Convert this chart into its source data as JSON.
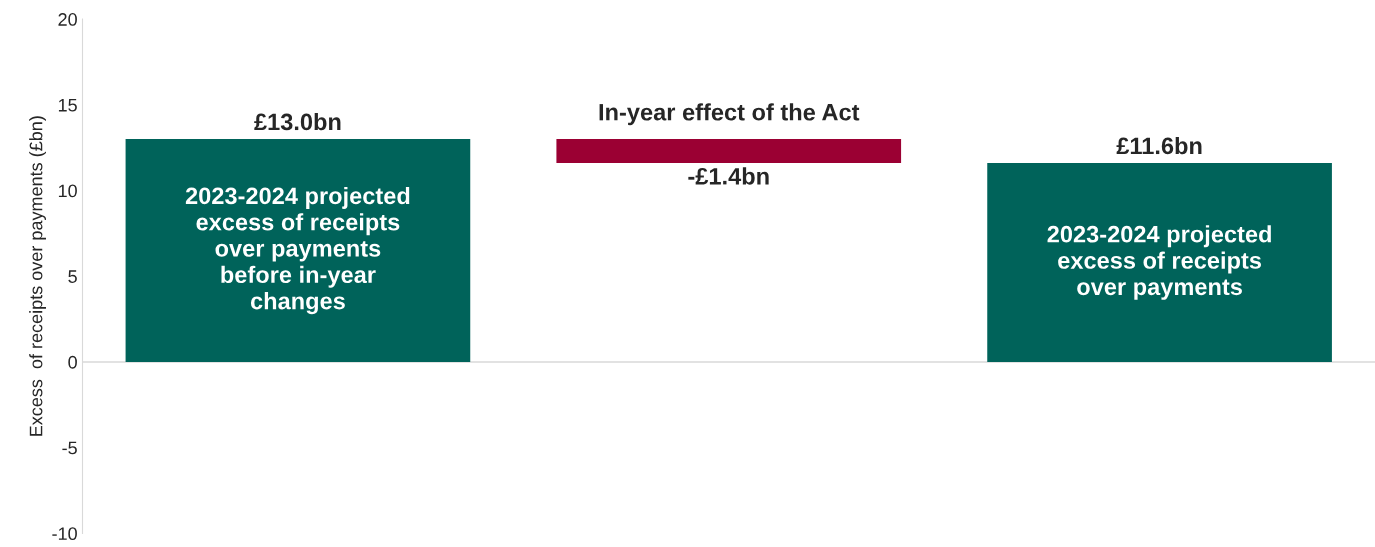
{
  "chart_data": {
    "type": "bar",
    "ylabel": "Excess  of receipts over payments (£bn)",
    "categories": [
      null,
      null,
      null
    ],
    "values": [
      13.0,
      -1.4,
      11.6
    ],
    "base": [
      0,
      13.0,
      0
    ],
    "colors": [
      "#00635a",
      "#9b0033",
      "#00635a"
    ],
    "value_labels": [
      "£13.0bn",
      "-£1.4bn",
      "£11.6bn"
    ],
    "annotations": [
      "2023-2024 projected\nexcess of receipts\nover payments\nbefore in-year\nchanges",
      "In-year effect of the Act",
      "2023-2024 projected\nexcess of receipts\nover payments"
    ],
    "ylim": [
      -10,
      20
    ],
    "yticks": [
      {
        "value": -10,
        "label": "-10"
      },
      {
        "value": -5,
        "label": "-5"
      },
      0,
      5,
      10,
      15,
      20
    ],
    "tick_labels": "y",
    "ref_lines": [
      {
        "axis": "y",
        "value": 0,
        "color": "#d9d9d9"
      }
    ],
    "grid": false,
    "legend": false
  }
}
